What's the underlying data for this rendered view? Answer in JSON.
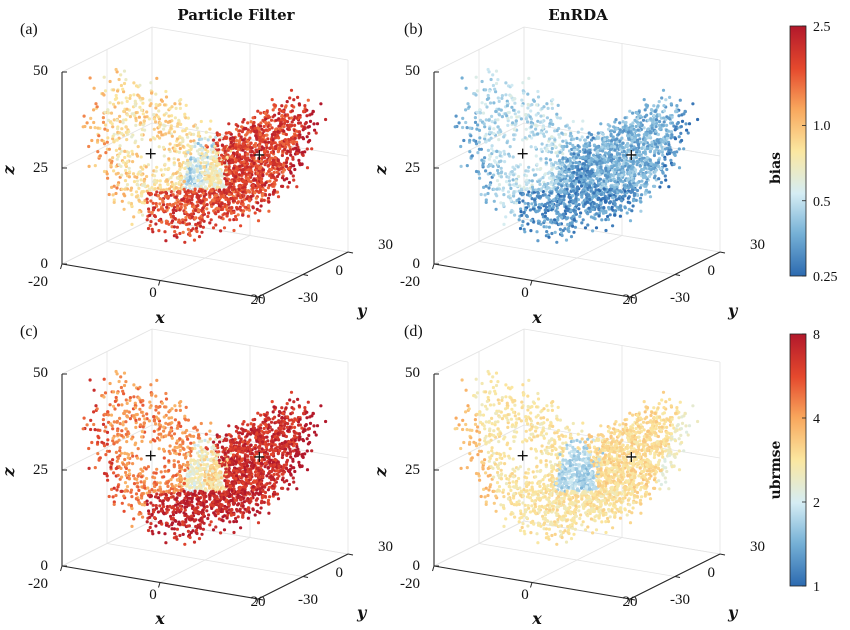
{
  "figure": {
    "colormap": [
      "#2c6ab0",
      "#76b1d6",
      "#d5edf4",
      "#fbe7a0",
      "#f8a65c",
      "#e5492d",
      "#b2182b"
    ],
    "equilibria": [
      [
        -8.49,
        -8.49,
        27
      ],
      [
        8.49,
        8.49,
        27
      ]
    ]
  },
  "chart_data": [
    {
      "type": "scatter3d",
      "panel_label": "(a)",
      "title": "Particle Filter",
      "xlabel": "x",
      "ylabel": "y",
      "zlabel": "z",
      "xlim": [
        -20,
        20
      ],
      "ylim": [
        -30,
        30
      ],
      "zlim": [
        0,
        50
      ],
      "xticks": [
        "-20",
        "0",
        "20"
      ],
      "yticks": [
        "-30",
        "0",
        "30"
      ],
      "zticks": [
        "0",
        "25",
        "50"
      ],
      "color_metric": "bias",
      "level_left": 0.55,
      "level_right": 0.9,
      "level_mid": 0.15,
      "level_stem": 0.85,
      "noise": 0.12
    },
    {
      "type": "scatter3d",
      "panel_label": "(b)",
      "title": "EnRDA",
      "xlabel": "x",
      "ylabel": "y",
      "zlabel": "z",
      "xlim": [
        -20,
        20
      ],
      "ylim": [
        -30,
        30
      ],
      "zlim": [
        0,
        50
      ],
      "xticks": [
        "-20",
        "0",
        "20"
      ],
      "yticks": [
        "-30",
        "0",
        "30"
      ],
      "zticks": [
        "0",
        "25",
        "50"
      ],
      "color_metric": "bias",
      "level_left": 0.25,
      "level_right": 0.15,
      "level_mid": 0.1,
      "level_stem": 0.1,
      "noise": 0.1
    },
    {
      "type": "scatter3d",
      "panel_label": "(c)",
      "title": "",
      "xlabel": "x",
      "ylabel": "y",
      "zlabel": "z",
      "xlim": [
        -20,
        20
      ],
      "ylim": [
        -30,
        30
      ],
      "zlim": [
        0,
        50
      ],
      "xticks": [
        "-20",
        "0",
        "20"
      ],
      "yticks": [
        "-30",
        "0",
        "30"
      ],
      "zticks": [
        "0",
        "25",
        "50"
      ],
      "color_metric": "ubrmse",
      "level_left": 0.75,
      "level_right": 0.95,
      "level_mid": 0.2,
      "level_stem": 0.95,
      "noise": 0.1
    },
    {
      "type": "scatter3d",
      "panel_label": "(d)",
      "title": "",
      "xlabel": "x",
      "ylabel": "y",
      "zlabel": "z",
      "xlim": [
        -20,
        20
      ],
      "ylim": [
        -30,
        30
      ],
      "zlim": [
        0,
        50
      ],
      "xticks": [
        "-20",
        "0",
        "20"
      ],
      "yticks": [
        "-30",
        "0",
        "30"
      ],
      "zticks": [
        "0",
        "25",
        "50"
      ],
      "color_metric": "ubrmse",
      "level_left": 0.52,
      "level_right": 0.5,
      "level_mid": 0.1,
      "level_stem": 0.5,
      "noise": 0.06
    }
  ],
  "colorbars": [
    {
      "label": "bias",
      "scale": "log",
      "range": [
        0.25,
        2.5
      ],
      "ticks": [
        "0.25",
        "0.5",
        "1.0",
        "2.5"
      ],
      "tick_values": [
        0.25,
        0.5,
        1.0,
        2.5
      ]
    },
    {
      "label": "ubrmse",
      "scale": "log",
      "range": [
        1,
        8
      ],
      "ticks": [
        "1",
        "2",
        "4",
        "8"
      ],
      "tick_values": [
        1,
        2,
        4,
        8
      ]
    }
  ]
}
